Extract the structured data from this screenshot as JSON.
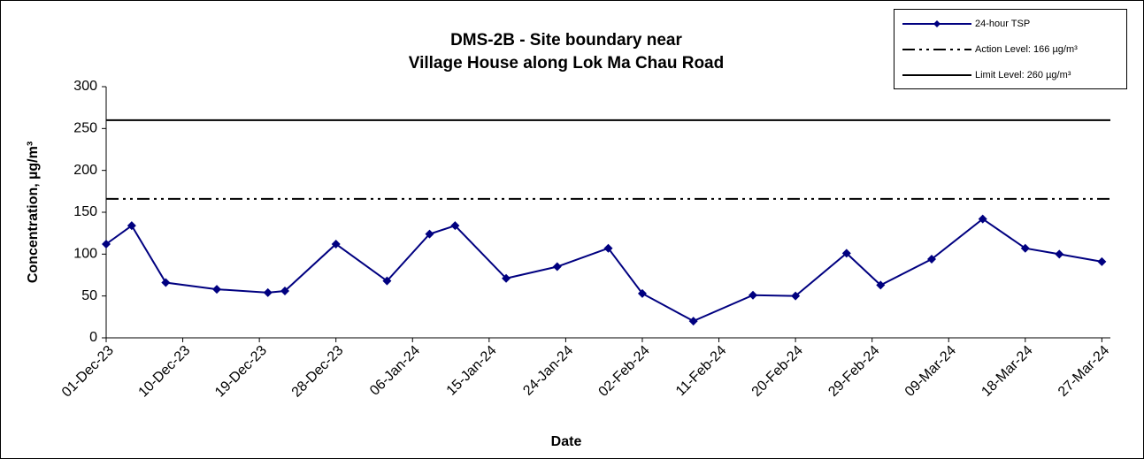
{
  "chart_data": {
    "type": "line",
    "title": [
      "DMS-2B - Site boundary near",
      "Village House along Lok Ma Chau Road"
    ],
    "xlabel": "Date",
    "ylabel": "Concentration, µg/m³",
    "x": [
      "01-Dec-23",
      "04-Dec-23",
      "08-Dec-23",
      "14-Dec-23",
      "20-Dec-23",
      "22-Dec-23",
      "28-Dec-23",
      "03-Jan-24",
      "08-Jan-24",
      "11-Jan-24",
      "17-Jan-24",
      "23-Jan-24",
      "29-Jan-24",
      "02-Feb-24",
      "08-Feb-24",
      "15-Feb-24",
      "20-Feb-24",
      "26-Feb-24",
      "01-Mar-24",
      "07-Mar-24",
      "13-Mar-24",
      "18-Mar-24",
      "22-Mar-24",
      "27-Mar-24"
    ],
    "series": [
      {
        "name": "24-hour TSP",
        "color": "#000080",
        "values": [
          112,
          134,
          66,
          58,
          54,
          56,
          112,
          68,
          124,
          134,
          71,
          85,
          107,
          53,
          20,
          51,
          50,
          101,
          63,
          94,
          142,
          107,
          100,
          91
        ]
      }
    ],
    "reference_lines": [
      {
        "name": "Action Level: 166 µg/m³",
        "value": 166,
        "color": "#000000",
        "style": "dash-dot"
      },
      {
        "name": "Limit Level: 260 µg/m³",
        "value": 260,
        "color": "#000000",
        "style": "solid"
      }
    ],
    "xlim": [
      "01-Dec-23",
      "28-Mar-24"
    ],
    "xticks": [
      "01-Dec-23",
      "10-Dec-23",
      "19-Dec-23",
      "28-Dec-23",
      "06-Jan-24",
      "15-Jan-24",
      "24-Jan-24",
      "02-Feb-24",
      "11-Feb-24",
      "20-Feb-24",
      "29-Feb-24",
      "09-Mar-24",
      "18-Mar-24",
      "27-Mar-24"
    ],
    "ylim": [
      0,
      300
    ],
    "yticks": [
      0,
      50,
      100,
      150,
      200,
      250,
      300
    ],
    "grid": false,
    "legend": "top-right"
  }
}
